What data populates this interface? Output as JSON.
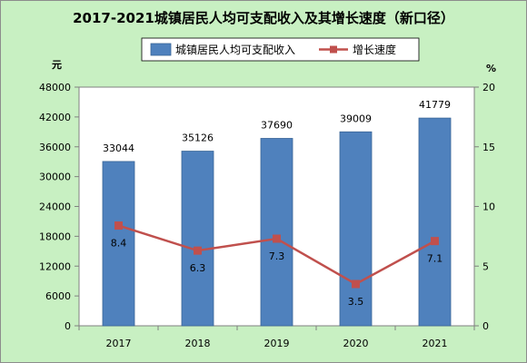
{
  "chart_data": {
    "type": "bar",
    "title": "2017-2021城镇居民人均可支配收入及其增长速度（新口径）",
    "categories": [
      "2017",
      "2018",
      "2019",
      "2020",
      "2021"
    ],
    "series": [
      {
        "name": "城镇居民人均可支配收入",
        "type": "bar",
        "axis": "left",
        "values": [
          33044,
          35126,
          37690,
          39009,
          41779
        ],
        "color": "#4f81bd"
      },
      {
        "name": "增长速度",
        "type": "line",
        "axis": "right",
        "values": [
          8.4,
          6.3,
          7.3,
          3.5,
          7.1
        ],
        "color": "#c0504d"
      }
    ],
    "y_left": {
      "unit": "元",
      "ylim": [
        0,
        48000
      ],
      "ticks": [
        0,
        6000,
        12000,
        18000,
        24000,
        30000,
        36000,
        42000,
        48000
      ]
    },
    "y_right": {
      "unit": "%",
      "ylim": [
        0,
        20
      ],
      "ticks": [
        0,
        5,
        10,
        15,
        20
      ]
    },
    "grid": false,
    "legend": "top-center",
    "plot_background": "#ffffff",
    "chart_background": "#c8f0c2"
  }
}
